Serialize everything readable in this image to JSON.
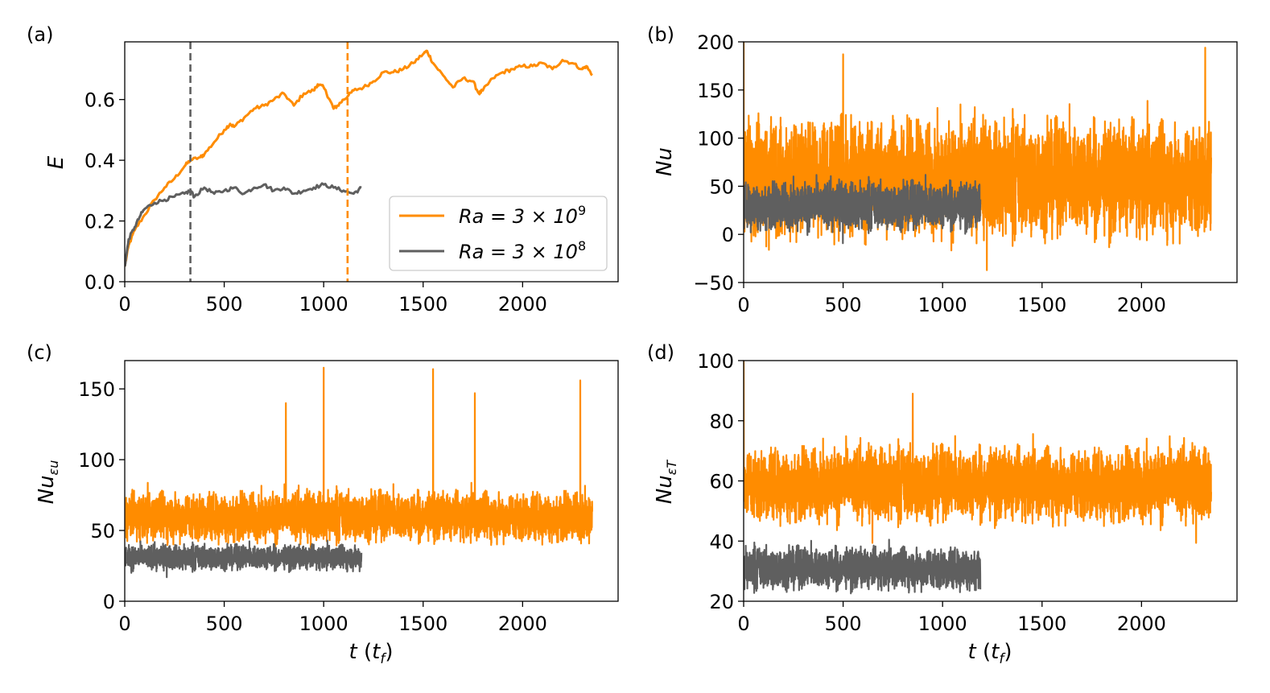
{
  "colors": {
    "orange": "#ff8c00",
    "gray": "#5f5f5f",
    "axis": "#000000"
  },
  "legend": {
    "orange_prefix": "Ra = 3 × 10",
    "orange_exp": "9",
    "gray_prefix": "Ra = 3 × 10",
    "gray_exp": "8"
  },
  "chart_data": [
    {
      "panel": "(a)",
      "type": "line",
      "ylabel": "E",
      "xlabel": "",
      "xlim": [
        0,
        2480
      ],
      "ylim": [
        0.0,
        0.79
      ],
      "xticks": [
        0,
        500,
        1000,
        1500,
        2000
      ],
      "xtick_labels": [
        "0",
        "500",
        "1000",
        "1500",
        "2000"
      ],
      "yticks": [
        0.0,
        0.2,
        0.4,
        0.6
      ],
      "ytick_labels": [
        "0.0",
        "0.2",
        "0.4",
        "0.6"
      ],
      "vlines": [
        {
          "x": 330,
          "color": "gray"
        },
        {
          "x": 1120,
          "color": "orange"
        }
      ],
      "legend_position": "lower-right",
      "series": [
        {
          "name": "Ra = 3 × 10^9",
          "color": "orange",
          "x": [
            0,
            20,
            50,
            100,
            150,
            200,
            250,
            300,
            330,
            380,
            400,
            450,
            500,
            530,
            550,
            600,
            650,
            700,
            750,
            800,
            850,
            900,
            950,
            970,
            1000,
            1030,
            1050,
            1070,
            1100,
            1120,
            1150,
            1200,
            1250,
            1300,
            1350,
            1400,
            1450,
            1500,
            1520,
            1550,
            1600,
            1650,
            1700,
            1750,
            1780,
            1800,
            1850,
            1900,
            1950,
            2000,
            2050,
            2100,
            2150,
            2200,
            2250,
            2300,
            2320,
            2350
          ],
          "y": [
            0.05,
            0.12,
            0.17,
            0.22,
            0.27,
            0.31,
            0.34,
            0.38,
            0.4,
            0.41,
            0.42,
            0.46,
            0.5,
            0.52,
            0.51,
            0.54,
            0.57,
            0.58,
            0.6,
            0.62,
            0.58,
            0.62,
            0.63,
            0.65,
            0.64,
            0.6,
            0.57,
            0.58,
            0.6,
            0.61,
            0.63,
            0.64,
            0.66,
            0.69,
            0.69,
            0.7,
            0.72,
            0.75,
            0.76,
            0.72,
            0.68,
            0.64,
            0.67,
            0.66,
            0.62,
            0.63,
            0.67,
            0.69,
            0.7,
            0.71,
            0.71,
            0.72,
            0.7,
            0.73,
            0.72,
            0.7,
            0.71,
            0.68
          ]
        },
        {
          "name": "Ra = 3 × 10^8",
          "color": "gray",
          "x": [
            0,
            20,
            50,
            80,
            100,
            150,
            200,
            250,
            300,
            330,
            350,
            400,
            450,
            500,
            550,
            600,
            650,
            700,
            750,
            800,
            850,
            900,
            950,
            1000,
            1050,
            1100,
            1150,
            1190
          ],
          "y": [
            0.05,
            0.14,
            0.18,
            0.22,
            0.24,
            0.26,
            0.27,
            0.28,
            0.29,
            0.3,
            0.28,
            0.31,
            0.29,
            0.3,
            0.31,
            0.29,
            0.31,
            0.32,
            0.3,
            0.31,
            0.29,
            0.3,
            0.31,
            0.32,
            0.31,
            0.3,
            0.29,
            0.31
          ]
        }
      ]
    },
    {
      "panel": "(b)",
      "type": "line",
      "ylabel": "Nu",
      "xlabel": "",
      "xlim": [
        0,
        2480
      ],
      "ylim": [
        -50,
        200
      ],
      "xticks": [
        0,
        500,
        1000,
        1500,
        2000
      ],
      "xtick_labels": [
        "0",
        "500",
        "1000",
        "1500",
        "2000"
      ],
      "yticks": [
        -50,
        0,
        50,
        100,
        150,
        200
      ],
      "ytick_labels": [
        "−50",
        "0",
        "50",
        "100",
        "150",
        "200"
      ],
      "series": [
        {
          "name": "Ra = 3 × 10^9",
          "color": "orange",
          "t_end": 2350,
          "mean": 58,
          "spread": 34,
          "peaks": [
            [
              0,
              200
            ],
            [
              500,
              187
            ],
            [
              2320,
              194
            ]
          ]
        },
        {
          "name": "Ra = 3 × 10^8",
          "color": "gray",
          "t_end": 1190,
          "mean": 30,
          "spread": 14
        }
      ]
    },
    {
      "panel": "(c)",
      "type": "line",
      "ylabel": "Nu_εu",
      "ylabel_main": "Nu",
      "ylabel_sub": "εu",
      "xlabel": "t (t_f)",
      "xlabel_t": "t",
      "xlabel_unit": "t",
      "xlabel_unit_sub": "f",
      "xlim": [
        0,
        2480
      ],
      "ylim": [
        0,
        170
      ],
      "xticks": [
        0,
        500,
        1000,
        1500,
        2000
      ],
      "xtick_labels": [
        "0",
        "500",
        "1000",
        "1500",
        "2000"
      ],
      "yticks": [
        0,
        50,
        100,
        150
      ],
      "ytick_labels": [
        "0",
        "50",
        "100",
        "150"
      ],
      "series": [
        {
          "name": "Ra = 3 × 10^9",
          "color": "orange",
          "t_end": 2350,
          "mean": 60,
          "spread": 10,
          "peaks": [
            [
              810,
              140
            ],
            [
              1000,
              165
            ],
            [
              1550,
              164
            ],
            [
              1760,
              147
            ],
            [
              2290,
              156
            ]
          ]
        },
        {
          "name": "Ra = 3 × 10^8",
          "color": "gray",
          "t_end": 1190,
          "mean": 31,
          "spread": 5
        }
      ]
    },
    {
      "panel": "(d)",
      "type": "line",
      "ylabel": "Nu_εT",
      "ylabel_main": "Nu",
      "ylabel_sub": "εT",
      "xlabel": "t (t_f)",
      "xlabel_t": "t",
      "xlabel_unit": "t",
      "xlabel_unit_sub": "f",
      "xlim": [
        0,
        2480
      ],
      "ylim": [
        20,
        100
      ],
      "xticks": [
        0,
        500,
        1000,
        1500,
        2000
      ],
      "xtick_labels": [
        "0",
        "500",
        "1000",
        "1500",
        "2000"
      ],
      "yticks": [
        20,
        40,
        60,
        80,
        100
      ],
      "ytick_labels": [
        "20",
        "40",
        "60",
        "80",
        "100"
      ],
      "series": [
        {
          "name": "Ra = 3 × 10^9",
          "color": "orange",
          "t_end": 2350,
          "mean": 59,
          "spread": 7,
          "peaks": [
            [
              0,
              100
            ],
            [
              850,
              89
            ]
          ]
        },
        {
          "name": "Ra = 3 × 10^8",
          "color": "gray",
          "t_end": 1190,
          "mean": 31,
          "spread": 4
        }
      ]
    }
  ]
}
